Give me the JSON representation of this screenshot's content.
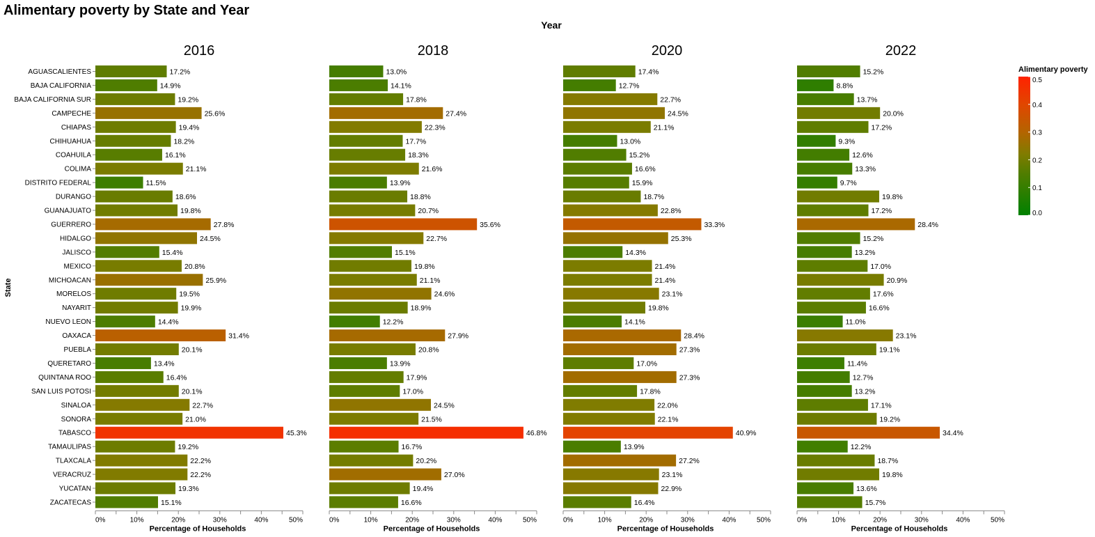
{
  "chart_data": {
    "type": "bar",
    "title": "Alimentary poverty by State and Year",
    "column_title": "Year",
    "ylabel": "State",
    "xlabel": "Percentage of Households",
    "xlim": [
      0,
      0.5
    ],
    "x_ticks": [
      "0%",
      "10%",
      "20%",
      "30%",
      "40%",
      "50%"
    ],
    "categories": [
      "AGUASCALIENTES",
      "BAJA CALIFORNIA",
      "BAJA CALIFORNIA SUR",
      "CAMPECHE",
      "CHIAPAS",
      "CHIHUAHUA",
      "COAHUILA",
      "COLIMA",
      "DISTRITO FEDERAL",
      "DURANGO",
      "GUANAJUATO",
      "GUERRERO",
      "HIDALGO",
      "JALISCO",
      "MEXICO",
      "MICHOACAN",
      "MORELOS",
      "NAYARIT",
      "NUEVO LEON",
      "OAXACA",
      "PUEBLA",
      "QUERETARO",
      "QUINTANA ROO",
      "SAN LUIS POTOSI",
      "SINALOA",
      "SONORA",
      "TABASCO",
      "TAMAULIPAS",
      "TLAXCALA",
      "VERACRUZ",
      "YUCATAN",
      "ZACATECAS"
    ],
    "series": [
      {
        "name": "2016",
        "values": [
          0.172,
          0.149,
          0.192,
          0.256,
          0.194,
          0.182,
          0.161,
          0.211,
          0.115,
          0.186,
          0.198,
          0.278,
          0.245,
          0.154,
          0.208,
          0.259,
          0.195,
          0.199,
          0.144,
          0.314,
          0.201,
          0.134,
          0.164,
          0.201,
          0.227,
          0.21,
          0.453,
          0.192,
          0.222,
          0.222,
          0.193,
          0.151
        ],
        "labels": [
          "17.2%",
          "14.9%",
          "19.2%",
          "25.6%",
          "19.4%",
          "18.2%",
          "16.1%",
          "21.1%",
          "11.5%",
          "18.6%",
          "19.8%",
          "27.8%",
          "24.5%",
          "15.4%",
          "20.8%",
          "25.9%",
          "19.5%",
          "19.9%",
          "14.4%",
          "31.4%",
          "20.1%",
          "13.4%",
          "16.4%",
          "20.1%",
          "22.7%",
          "21.0%",
          "45.3%",
          "19.2%",
          "22.2%",
          "22.2%",
          "19.3%",
          "15.1%"
        ]
      },
      {
        "name": "2018",
        "values": [
          0.13,
          0.141,
          0.178,
          0.274,
          0.223,
          0.177,
          0.183,
          0.216,
          0.139,
          0.188,
          0.207,
          0.356,
          0.227,
          0.151,
          0.198,
          0.211,
          0.246,
          0.189,
          0.122,
          0.279,
          0.208,
          0.139,
          0.179,
          0.17,
          0.245,
          0.215,
          0.468,
          0.167,
          0.202,
          0.27,
          0.194,
          0.166
        ],
        "labels": [
          "13.0%",
          "14.1%",
          "17.8%",
          "27.4%",
          "22.3%",
          "17.7%",
          "18.3%",
          "21.6%",
          "13.9%",
          "18.8%",
          "20.7%",
          "35.6%",
          "22.7%",
          "15.1%",
          "19.8%",
          "21.1%",
          "24.6%",
          "18.9%",
          "12.2%",
          "27.9%",
          "20.8%",
          "13.9%",
          "17.9%",
          "17.0%",
          "24.5%",
          "21.5%",
          "46.8%",
          "16.7%",
          "20.2%",
          "27.0%",
          "19.4%",
          "16.6%"
        ]
      },
      {
        "name": "2020",
        "values": [
          0.174,
          0.127,
          0.227,
          0.245,
          0.211,
          0.13,
          0.152,
          0.166,
          0.159,
          0.187,
          0.228,
          0.333,
          0.253,
          0.143,
          0.214,
          0.214,
          0.231,
          0.198,
          0.141,
          0.284,
          0.273,
          0.17,
          0.273,
          0.178,
          0.22,
          0.221,
          0.409,
          0.139,
          0.272,
          0.231,
          0.229,
          0.164
        ],
        "labels": [
          "17.4%",
          "12.7%",
          "22.7%",
          "24.5%",
          "21.1%",
          "13.0%",
          "15.2%",
          "16.6%",
          "15.9%",
          "18.7%",
          "22.8%",
          "33.3%",
          "25.3%",
          "14.3%",
          "21.4%",
          "21.4%",
          "23.1%",
          "19.8%",
          "14.1%",
          "28.4%",
          "27.3%",
          "17.0%",
          "27.3%",
          "17.8%",
          "22.0%",
          "22.1%",
          "40.9%",
          "13.9%",
          "27.2%",
          "23.1%",
          "22.9%",
          "16.4%"
        ]
      },
      {
        "name": "2022",
        "values": [
          0.152,
          0.088,
          0.137,
          0.2,
          0.172,
          0.093,
          0.126,
          0.133,
          0.097,
          0.198,
          0.172,
          0.284,
          0.152,
          0.132,
          0.17,
          0.209,
          0.176,
          0.166,
          0.11,
          0.231,
          0.191,
          0.114,
          0.127,
          0.132,
          0.171,
          0.192,
          0.344,
          0.122,
          0.187,
          0.198,
          0.136,
          0.157
        ],
        "labels": [
          "15.2%",
          "8.8%",
          "13.7%",
          "20.0%",
          "17.2%",
          "9.3%",
          "12.6%",
          "13.3%",
          "9.7%",
          "19.8%",
          "17.2%",
          "28.4%",
          "15.2%",
          "13.2%",
          "17.0%",
          "20.9%",
          "17.6%",
          "16.6%",
          "11.0%",
          "23.1%",
          "19.1%",
          "11.4%",
          "12.7%",
          "13.2%",
          "17.1%",
          "19.2%",
          "34.4%",
          "12.2%",
          "18.7%",
          "19.8%",
          "13.6%",
          "15.7%"
        ]
      }
    ],
    "legend": {
      "title": "Alimentary poverty",
      "placement": "top-right",
      "domain": [
        0,
        0.5
      ],
      "ticks": [
        "0.0",
        "0.1",
        "0.2",
        "0.3",
        "0.4",
        "0.5"
      ],
      "colors": [
        "#008000",
        "#ff2200"
      ]
    },
    "grid": false
  }
}
